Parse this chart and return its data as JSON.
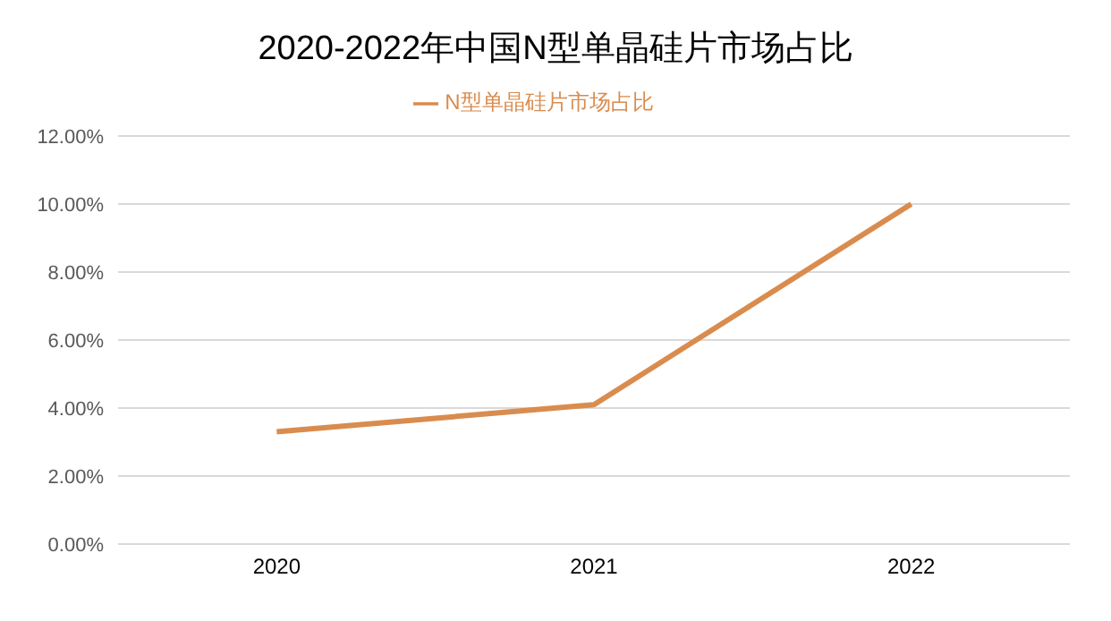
{
  "chart_data": {
    "type": "line",
    "title": "2020-2022年中国N型单晶硅片市场占比",
    "categories": [
      "2020",
      "2021",
      "2022"
    ],
    "series": [
      {
        "name": "N型单晶硅片市场占比",
        "color": "#d98c4e",
        "values": [
          3.3,
          4.1,
          10.0
        ]
      }
    ],
    "ylim": [
      0,
      12
    ],
    "yticks": [
      {
        "value": 0,
        "label": "0.00%"
      },
      {
        "value": 2,
        "label": "2.00%"
      },
      {
        "value": 4,
        "label": "4.00%"
      },
      {
        "value": 6,
        "label": "6.00%"
      },
      {
        "value": 8,
        "label": "8.00%"
      },
      {
        "value": 10,
        "label": "10.00%"
      },
      {
        "value": 12,
        "label": "12.00%"
      }
    ],
    "grid": "y",
    "legend": "top",
    "marker": "none",
    "line_style": "solid"
  }
}
